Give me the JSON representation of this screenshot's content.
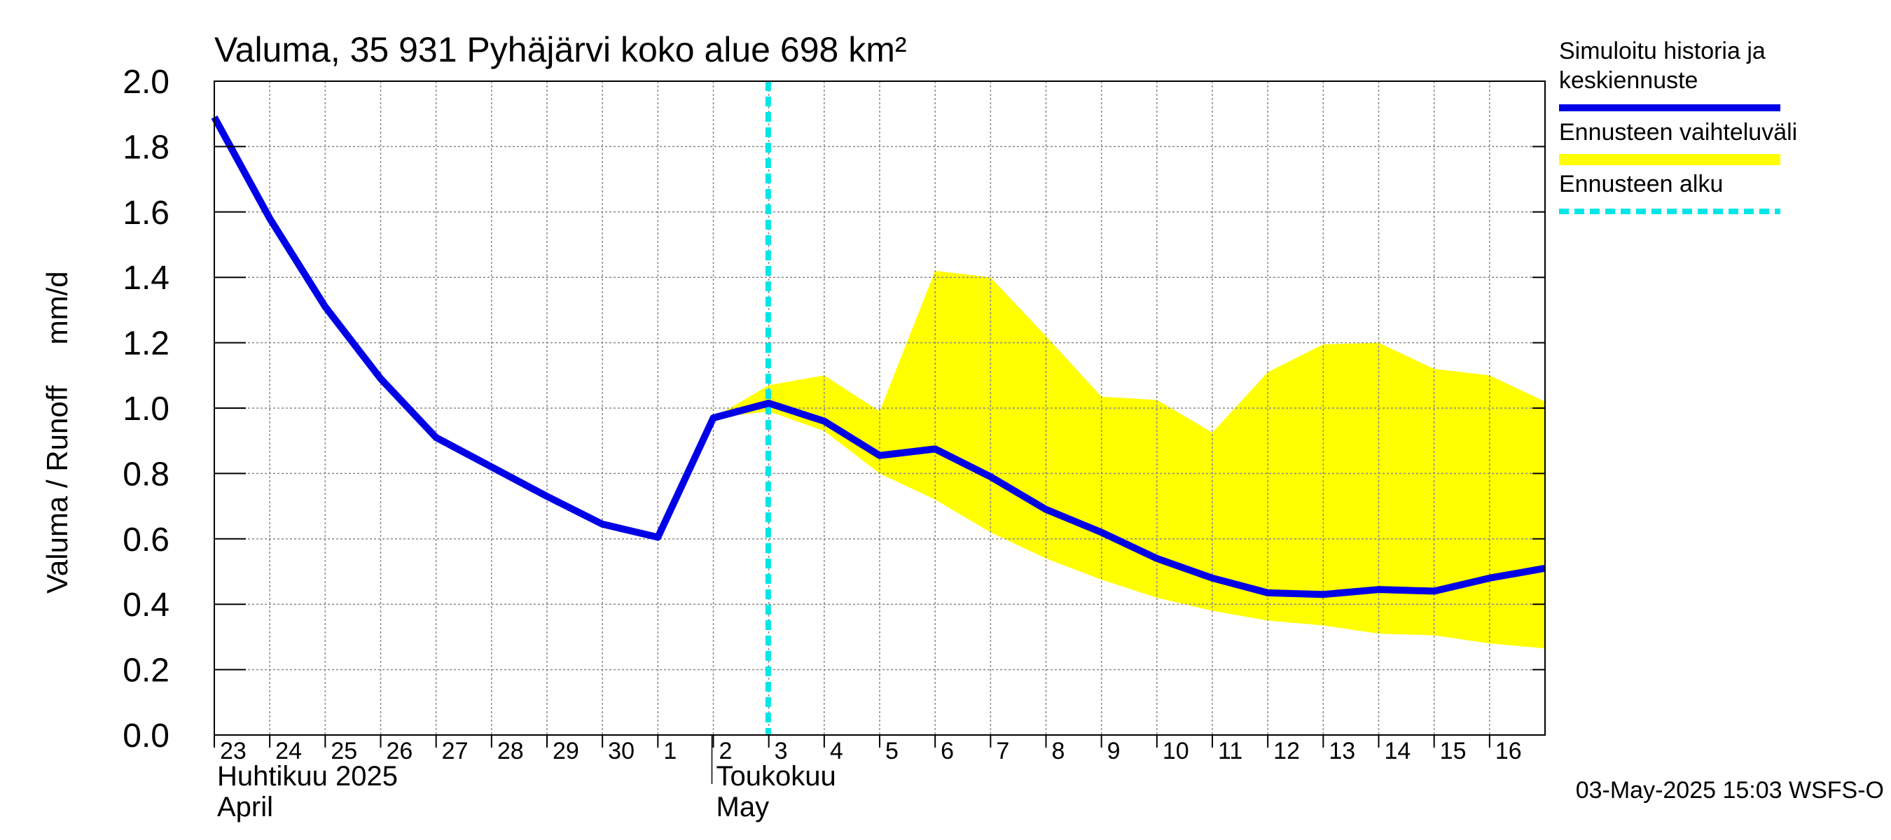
{
  "chart_data": {
    "type": "line",
    "title": "Valuma, 35 931 Pyhäjärvi koko alue 698 km²",
    "ylabel": "Valuma / Runoff     mm/d",
    "ylim": [
      0.0,
      2.0
    ],
    "yticks": [
      "0.0",
      "0.2",
      "0.4",
      "0.6",
      "0.8",
      "1.0",
      "1.2",
      "1.4",
      "1.6",
      "1.8",
      "2.0"
    ],
    "x_day_labels": [
      "23",
      "24",
      "25",
      "26",
      "27",
      "28",
      "29",
      "30",
      "1",
      "2",
      "3",
      "4",
      "5",
      "6",
      "7",
      "8",
      "9",
      "10",
      "11",
      "12",
      "13",
      "14",
      "15",
      "16"
    ],
    "month_labels": [
      {
        "line1": "Huhtikuu  2025",
        "line2": "April",
        "start_day_index": 0
      },
      {
        "line1": "Toukokuu",
        "line2": "May",
        "start_day_index": 9
      }
    ],
    "series": [
      {
        "name": "Simuloitu historia ja keskiennuste",
        "color": "#0000e6",
        "x": [
          0,
          1,
          2,
          3,
          4,
          5,
          6,
          7,
          8,
          9,
          10,
          11,
          12,
          13,
          14,
          15,
          16,
          17,
          18,
          19,
          20,
          21,
          22,
          23,
          24
        ],
        "values": [
          1.89,
          1.58,
          1.31,
          1.09,
          0.91,
          0.82,
          0.73,
          0.645,
          0.605,
          0.97,
          1.015,
          0.96,
          0.855,
          0.875,
          0.79,
          0.69,
          0.62,
          0.54,
          0.48,
          0.435,
          0.43,
          0.445,
          0.44,
          0.48,
          0.51
        ]
      }
    ],
    "band": {
      "name": "Ennusteen vaihteluväli",
      "color": "#ffff00",
      "x": [
        9,
        10,
        11,
        12,
        13,
        14,
        15,
        16,
        17,
        18,
        19,
        20,
        21,
        22,
        23,
        24
      ],
      "upper": [
        0.97,
        1.07,
        1.1,
        0.99,
        1.42,
        1.4,
        1.22,
        1.035,
        1.025,
        0.925,
        1.11,
        1.195,
        1.2,
        1.12,
        1.1,
        1.02
      ],
      "lower": [
        0.97,
        0.99,
        0.93,
        0.8,
        0.72,
        0.62,
        0.54,
        0.475,
        0.42,
        0.38,
        0.35,
        0.335,
        0.31,
        0.305,
        0.28,
        0.265
      ]
    },
    "forecast_start": {
      "name": "Ennusteen alku",
      "x": 9.99,
      "color": "#00e6e6"
    },
    "legend": [
      {
        "label_lines": [
          "Simuloitu historia ja",
          "keskiennuste"
        ],
        "style": "line",
        "color": "#0000e6"
      },
      {
        "label_lines": [
          "Ennusteen vaihteluväli"
        ],
        "style": "band",
        "color": "#ffff00"
      },
      {
        "label_lines": [
          "Ennusteen alku"
        ],
        "style": "dashed",
        "color": "#00e6e6"
      }
    ],
    "footer": "03-May-2025 15:03 WSFS-O"
  }
}
